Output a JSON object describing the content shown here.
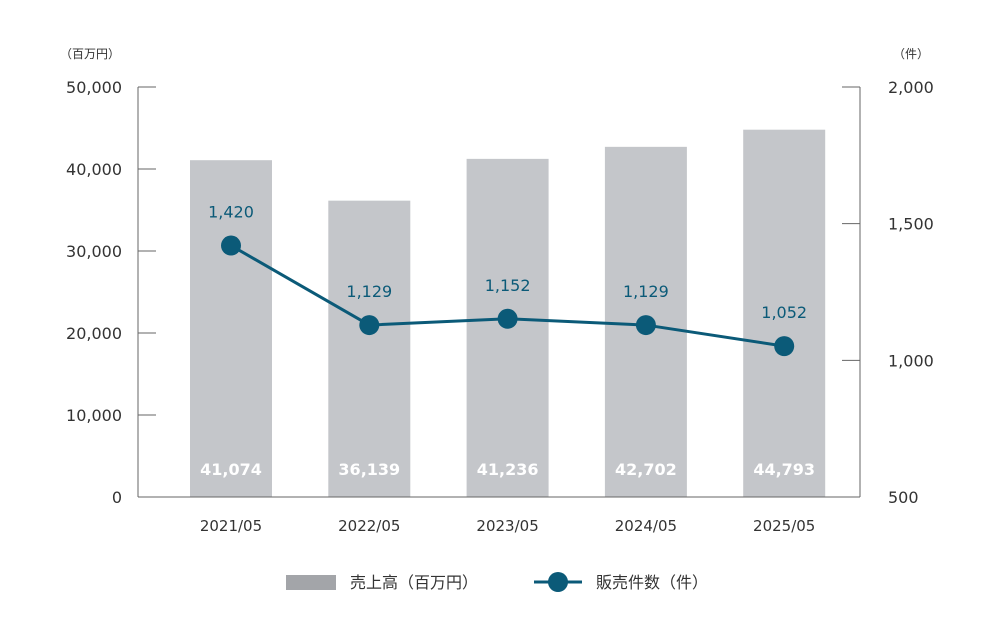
{
  "chart_data": {
    "type": "bar+line",
    "categories": [
      "2021/05",
      "2022/05",
      "2023/05",
      "2024/05",
      "2025/05"
    ],
    "series": [
      {
        "name": "売上高（百万円）",
        "type": "bar",
        "axis": "left",
        "values": [
          41074,
          36139,
          41236,
          42702,
          44793
        ],
        "labels": [
          "41,074",
          "36,139",
          "41,236",
          "42,702",
          "44,793"
        ],
        "color": "#c4c6ca",
        "legend_color": "#a3a5a9"
      },
      {
        "name": "販売件数（件）",
        "type": "line",
        "axis": "right",
        "values": [
          1420,
          1129,
          1152,
          1129,
          1052
        ],
        "labels": [
          "1,420",
          "1,129",
          "1,152",
          "1,129",
          "1,052"
        ],
        "color": "#0b5a78"
      }
    ],
    "left_axis": {
      "unit": "（百万円）",
      "ylim": [
        0,
        50000
      ],
      "ticks": [
        0,
        10000,
        20000,
        30000,
        40000,
        50000
      ],
      "tick_labels": [
        "0",
        "10,000",
        "20,000",
        "30,000",
        "40,000",
        "50,000"
      ]
    },
    "right_axis": {
      "unit": "（件）",
      "ylim": [
        500,
        2000
      ],
      "ticks": [
        500,
        1000,
        1500,
        2000
      ],
      "tick_labels": [
        "500",
        "1,000",
        "1,500",
        "2,000"
      ]
    },
    "grid": false,
    "legend": "bottom-center"
  }
}
